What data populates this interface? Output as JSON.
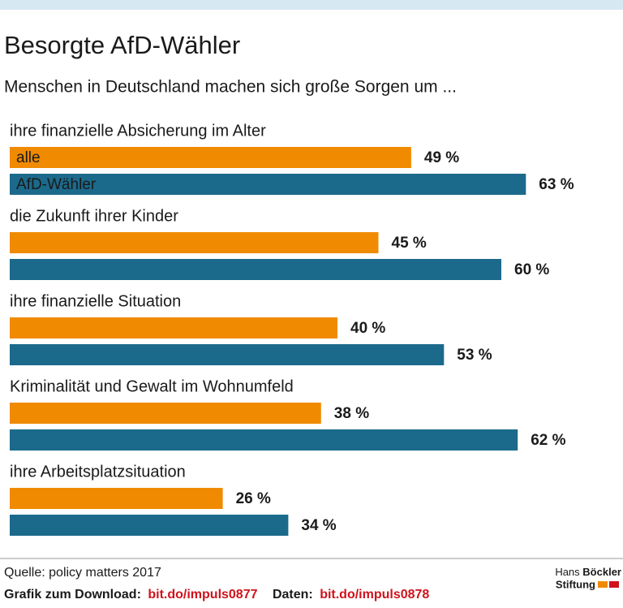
{
  "chart_data": {
    "type": "bar",
    "orientation": "horizontal",
    "title": "Besorgte AfD-Wähler",
    "subtitle": "Menschen in Deutschland machen sich große Sorgen um ...",
    "categories": [
      "ihre finanzielle Absicherung im Alter",
      "die Zukunft ihrer Kinder",
      "ihre finanzielle Situation",
      "Kriminalität und Gewalt im Wohnumfeld",
      "ihre Arbeitsplatzsituation"
    ],
    "series": [
      {
        "name": "alle",
        "color": "#f08a00",
        "values": [
          49,
          45,
          40,
          38,
          26
        ],
        "value_labels": [
          "49 %",
          "45 %",
          "40 %",
          "38 %",
          "26 %"
        ]
      },
      {
        "name": "AfD-Wähler",
        "color": "#1b6a8b",
        "values": [
          63,
          60,
          53,
          62,
          34
        ],
        "value_labels": [
          "63 %",
          "60 %",
          "53 %",
          "62 %",
          "34 %"
        ]
      }
    ]
  },
  "footer": {
    "source": "Quelle: policy matters 2017",
    "download_label": "Grafik zum Download:",
    "download_link": "bit.do/impuls0877",
    "data_label": "Daten:",
    "data_link": "bit.do/impuls0878",
    "logo": {
      "line1_regular": "Hans",
      "line1_bold": "Böckler",
      "line2": "Stiftung"
    }
  }
}
